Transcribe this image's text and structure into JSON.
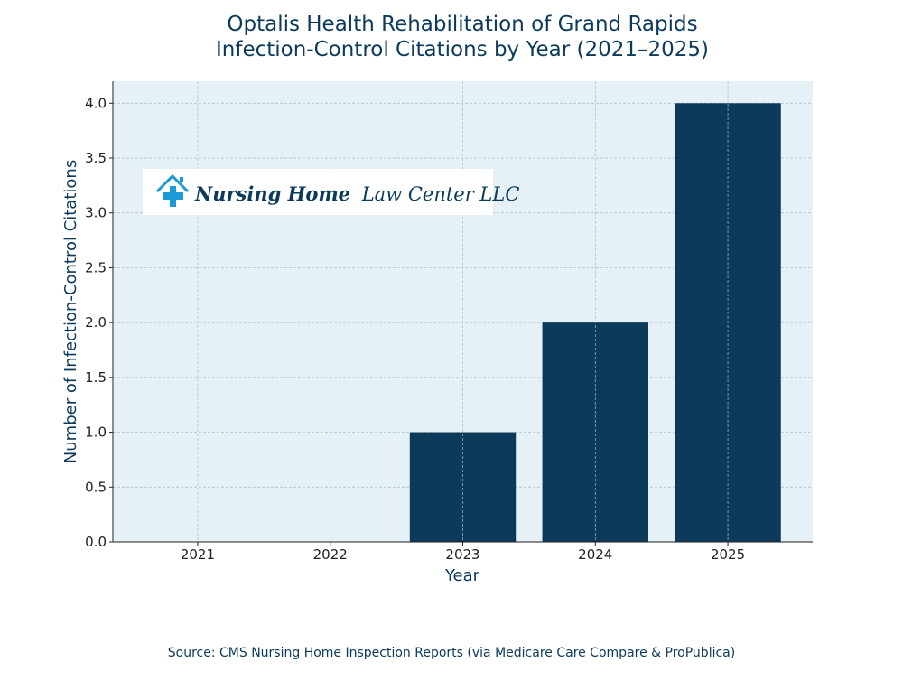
{
  "chart_data": {
    "type": "bar",
    "title_line1": "Optalis Health Rehabilitation of Grand Rapids",
    "title_line2": "Infection-Control Citations by Year (2021–2025)",
    "xlabel": "Year",
    "ylabel": "Number of Infection-Control Citations",
    "categories": [
      "2021",
      "2022",
      "2023",
      "2024",
      "2025"
    ],
    "values": [
      0,
      0,
      1,
      2,
      4
    ],
    "ylim": [
      0,
      4.2
    ],
    "yticks": [
      "0.0",
      "0.5",
      "1.0",
      "1.5",
      "2.0",
      "2.5",
      "3.0",
      "3.5",
      "4.0"
    ],
    "grid": true,
    "bar_color": "#0b3a5a",
    "plot_background": "#e6f0f7",
    "text_color": "#0b3a5a"
  },
  "logo": {
    "bold": "Nursing Home",
    "regular": "Law Center LLC",
    "icon": "house-medical-cross-icon",
    "icon_color": "#1a9ad6"
  },
  "source": "Source: CMS Nursing Home Inspection Reports (via Medicare Care Compare & ProPublica)"
}
